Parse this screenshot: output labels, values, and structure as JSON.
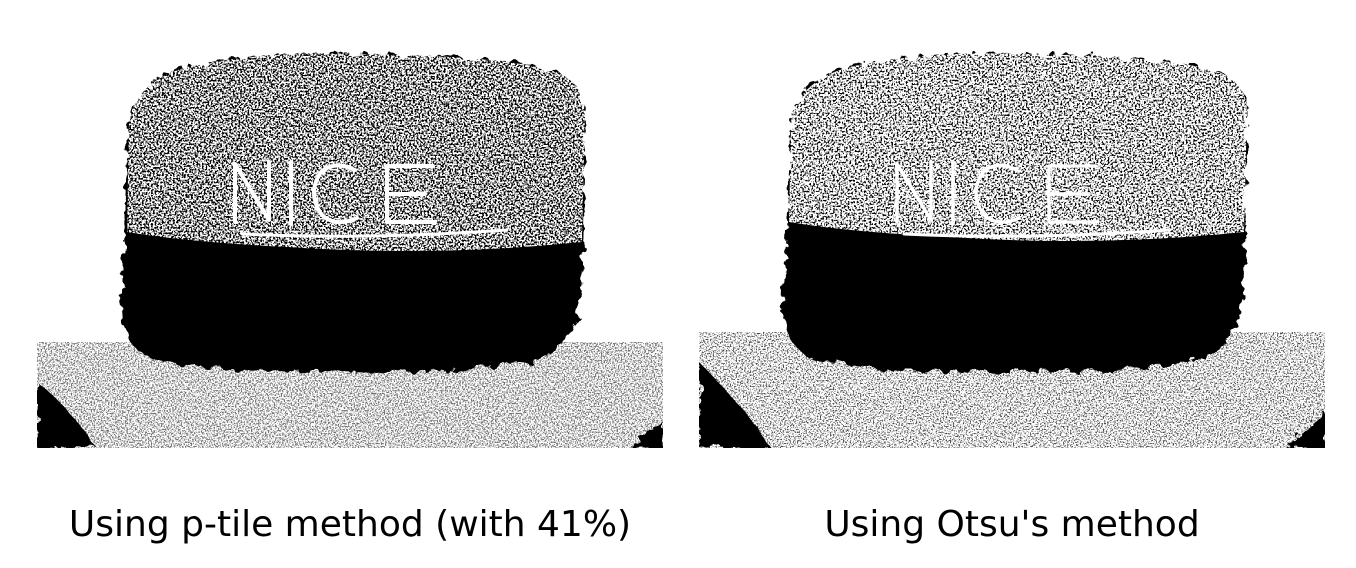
{
  "figures": [
    {
      "id": "ptile",
      "caption": "Using p-tile method (with 41%)",
      "image_text": "NICE",
      "image_description": "binarized photo of a biscuit embossed with NICE"
    },
    {
      "id": "otsu",
      "caption": "Using Otsu's method",
      "image_text": "NICE",
      "image_description": "binarized photo of a biscuit embossed with NICE"
    }
  ],
  "colors": {
    "foreground": "#000000",
    "background": "#ffffff"
  }
}
